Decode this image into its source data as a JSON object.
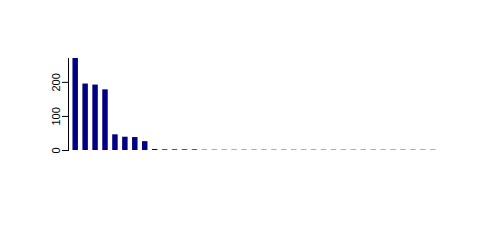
{
  "chart_data": {
    "type": "bar",
    "categories": [
      null,
      null,
      null,
      null,
      null,
      null,
      null,
      null,
      null,
      null,
      null,
      null,
      null,
      null,
      null,
      null,
      null,
      null,
      null,
      null,
      null,
      null,
      null,
      null,
      null,
      null,
      null,
      null,
      null,
      null,
      null,
      null,
      null,
      null,
      null,
      null,
      null
    ],
    "values": [
      270,
      195,
      192,
      178,
      46,
      39,
      38,
      26,
      3,
      2,
      2,
      2,
      2,
      1,
      1,
      1,
      1,
      1,
      1,
      1,
      1,
      1,
      1,
      1,
      1,
      1,
      1,
      1,
      1,
      1,
      1,
      1,
      1,
      1,
      1,
      1,
      1
    ],
    "color": "#000080",
    "ylim": [
      0,
      270
    ],
    "yticks": [
      0,
      100,
      200
    ],
    "tick_labels": "y"
  }
}
